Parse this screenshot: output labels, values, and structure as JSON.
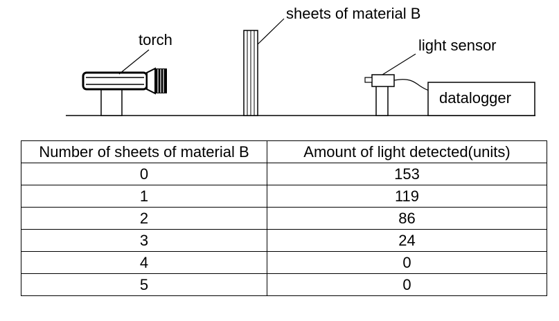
{
  "labels": {
    "torch": "torch",
    "sheets": "sheets of material B",
    "sensor": "light sensor",
    "datalogger": "datalogger"
  },
  "table": {
    "headers": [
      "Number of sheets of material B",
      "Amount of light detected(units)"
    ],
    "rows": [
      [
        "0",
        "153"
      ],
      [
        "1",
        "119"
      ],
      [
        "2",
        "86"
      ],
      [
        "3",
        "24"
      ],
      [
        "4",
        "0"
      ],
      [
        "5",
        "0"
      ]
    ]
  }
}
